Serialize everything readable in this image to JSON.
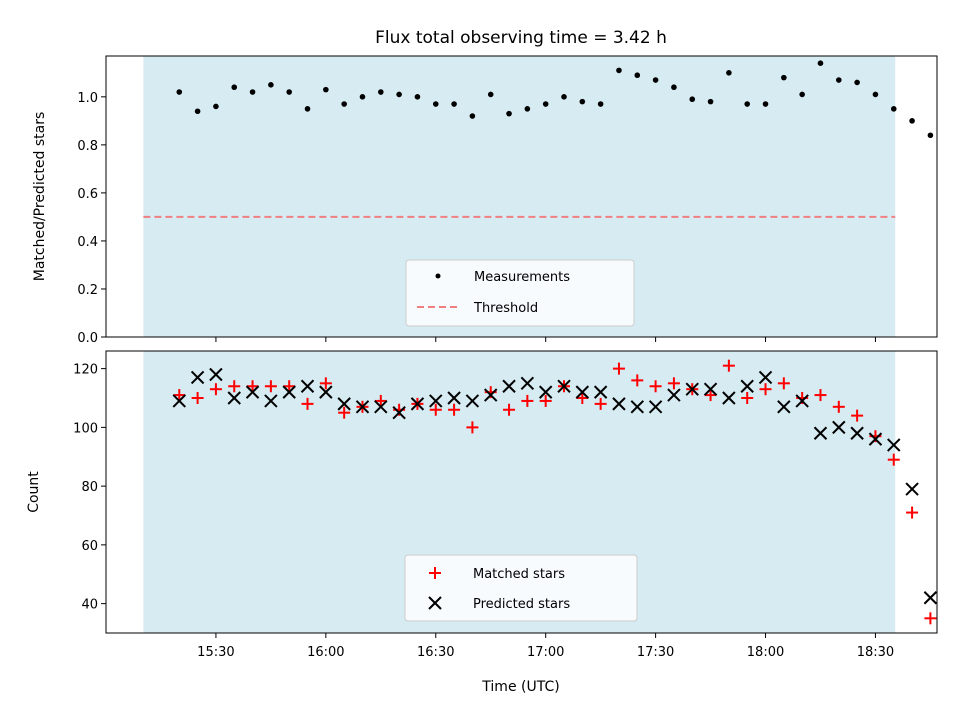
{
  "chart_data": [
    {
      "type": "scatter",
      "title": "Flux total observing time = 3.42 h",
      "ylabel": "Matched/Predicted stars",
      "xlabel": "",
      "ylim": [
        0,
        1.17
      ],
      "yticks": [
        "0.0",
        "0.2",
        "0.4",
        "0.6",
        "0.8",
        "1.0"
      ],
      "ytick_values": [
        0,
        0.2,
        0.4,
        0.6,
        0.8,
        1.0
      ],
      "xlim_utc_hours": [
        15.0,
        18.78
      ],
      "observing_window_utc_hours": [
        15.17,
        18.59
      ],
      "threshold": 0.5,
      "legend": [
        "Measurements",
        "Threshold"
      ],
      "legend_position": "lower-center",
      "colors": {
        "measurements": "#000000",
        "threshold": "#f08080",
        "window": "#add8e6"
      },
      "series": [
        {
          "name": "Measurements",
          "x": [
            "15:20",
            "15:25",
            "15:30",
            "15:35",
            "15:40",
            "15:45",
            "15:50",
            "15:55",
            "16:00",
            "16:05",
            "16:10",
            "16:15",
            "16:20",
            "16:25",
            "16:30",
            "16:35",
            "16:40",
            "16:45",
            "16:50",
            "16:55",
            "17:00",
            "17:05",
            "17:10",
            "17:15",
            "17:20",
            "17:25",
            "17:30",
            "17:35",
            "17:40",
            "17:45",
            "17:50",
            "17:55",
            "18:00",
            "18:05",
            "18:10",
            "18:15",
            "18:20",
            "18:25",
            "18:30",
            "18:35",
            "18:40",
            "18:45"
          ],
          "y": [
            1.02,
            0.94,
            0.96,
            1.04,
            1.02,
            1.05,
            1.02,
            0.95,
            1.03,
            0.97,
            1.0,
            1.02,
            1.01,
            1.0,
            0.97,
            0.97,
            0.92,
            1.01,
            0.93,
            0.95,
            0.97,
            1.0,
            0.98,
            0.97,
            1.11,
            1.09,
            1.07,
            1.04,
            0.99,
            0.98,
            1.1,
            0.97,
            0.97,
            1.08,
            1.01,
            1.14,
            1.07,
            1.06,
            1.01,
            0.95,
            0.9,
            0.84
          ]
        }
      ]
    },
    {
      "type": "scatter",
      "xlabel": "Time (UTC)",
      "ylabel": "Count",
      "ylim": [
        30,
        126
      ],
      "yticks": [
        "40",
        "60",
        "80",
        "100",
        "120"
      ],
      "ytick_values": [
        40,
        60,
        80,
        100,
        120
      ],
      "xticks": [
        "15:30",
        "16:00",
        "16:30",
        "17:00",
        "17:30",
        "18:00",
        "18:30"
      ],
      "xtick_values_utc_hours": [
        15.5,
        16.0,
        16.5,
        17.0,
        17.5,
        18.0,
        18.5
      ],
      "xlim_utc_hours": [
        15.0,
        18.78
      ],
      "legend": [
        "Matched stars",
        "Predicted stars"
      ],
      "legend_position": "lower-center",
      "colors": {
        "matched": "#ff0000",
        "predicted": "#000000",
        "window": "#add8e6"
      },
      "series": [
        {
          "name": "Matched stars",
          "x": [
            "15:20",
            "15:25",
            "15:30",
            "15:35",
            "15:40",
            "15:45",
            "15:50",
            "15:55",
            "16:00",
            "16:05",
            "16:10",
            "16:15",
            "16:20",
            "16:25",
            "16:30",
            "16:35",
            "16:40",
            "16:45",
            "16:50",
            "16:55",
            "17:00",
            "17:05",
            "17:10",
            "17:15",
            "17:20",
            "17:25",
            "17:30",
            "17:35",
            "17:40",
            "17:45",
            "17:50",
            "17:55",
            "18:00",
            "18:05",
            "18:10",
            "18:15",
            "18:20",
            "18:25",
            "18:30",
            "18:35",
            "18:40",
            "18:45"
          ],
          "y": [
            111,
            110,
            113,
            114,
            114,
            114,
            114,
            108,
            115,
            105,
            107,
            109,
            106,
            108,
            106,
            106,
            100,
            112,
            106,
            109,
            109,
            114,
            110,
            108,
            120,
            116,
            114,
            115,
            113,
            111,
            121,
            110,
            113,
            115,
            110,
            111,
            107,
            104,
            97,
            89,
            71,
            35
          ]
        },
        {
          "name": "Predicted stars",
          "x": [
            "15:20",
            "15:25",
            "15:30",
            "15:35",
            "15:40",
            "15:45",
            "15:50",
            "15:55",
            "16:00",
            "16:05",
            "16:10",
            "16:15",
            "16:20",
            "16:25",
            "16:30",
            "16:35",
            "16:40",
            "16:45",
            "16:50",
            "16:55",
            "17:00",
            "17:05",
            "17:10",
            "17:15",
            "17:20",
            "17:25",
            "17:30",
            "17:35",
            "17:40",
            "17:45",
            "17:50",
            "17:55",
            "18:00",
            "18:05",
            "18:10",
            "18:15",
            "18:20",
            "18:25",
            "18:30",
            "18:35",
            "18:40",
            "18:45"
          ],
          "y": [
            109,
            117,
            118,
            110,
            112,
            109,
            112,
            114,
            112,
            108,
            107,
            107,
            105,
            108,
            109,
            110,
            109,
            111,
            114,
            115,
            112,
            114,
            112,
            112,
            108,
            107,
            107,
            111,
            113,
            113,
            110,
            114,
            117,
            107,
            109,
            98,
            100,
            98,
            96,
            94,
            79,
            42
          ]
        }
      ]
    }
  ]
}
